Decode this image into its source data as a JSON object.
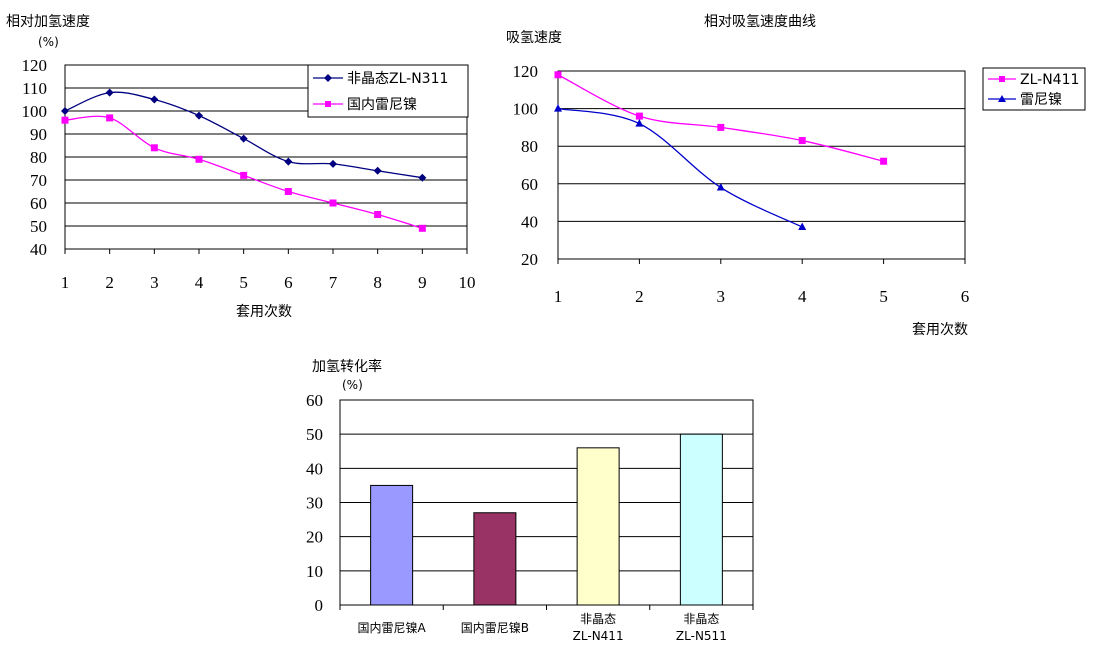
{
  "chart_data": [
    {
      "type": "line",
      "ylabel": "相对加氢速度",
      "ylabel_unit": "(%)",
      "xlabel": "套用次数",
      "x_ticks": [
        "1",
        "2",
        "3",
        "4",
        "5",
        "6",
        "7",
        "8",
        "9",
        "10"
      ],
      "y_ticks": [
        "120",
        "110",
        "100",
        "90",
        "80",
        "70",
        "60",
        "50",
        "40"
      ],
      "xlim": [
        1,
        10
      ],
      "ylim": [
        40,
        120
      ],
      "grid": true,
      "legend_position": "top-right",
      "series": [
        {
          "name": "非晶态ZL-N311",
          "color": "#000080",
          "marker": "diamond",
          "x": [
            1,
            2,
            3,
            4,
            5,
            6,
            7,
            8,
            9
          ],
          "y": [
            100,
            108,
            105,
            98,
            88,
            78,
            77,
            74,
            71
          ]
        },
        {
          "name": "国内雷尼镍",
          "color": "#FF00FF",
          "marker": "square",
          "x": [
            1,
            2,
            3,
            4,
            5,
            6,
            7,
            8,
            9
          ],
          "y": [
            96,
            97,
            84,
            79,
            72,
            65,
            60,
            55,
            49
          ]
        }
      ]
    },
    {
      "type": "line",
      "title": "相对吸氢速度曲线",
      "ylabel": "吸氢速度",
      "xlabel": "套用次数",
      "x_ticks": [
        "1",
        "2",
        "3",
        "4",
        "5",
        "6"
      ],
      "y_ticks": [
        "120",
        "100",
        "80",
        "60",
        "40",
        "20"
      ],
      "xlim": [
        1,
        6
      ],
      "ylim": [
        20,
        120
      ],
      "grid": true,
      "legend_position": "right",
      "series": [
        {
          "name": "ZL-N411",
          "color": "#FF00FF",
          "marker": "square",
          "x": [
            1,
            2,
            3,
            4,
            5
          ],
          "y": [
            118,
            96,
            90,
            83,
            72
          ]
        },
        {
          "name": "雷尼镍",
          "color": "#0000CC",
          "marker": "triangle",
          "x": [
            1,
            2,
            3,
            4
          ],
          "y": [
            100,
            92,
            58,
            37
          ]
        }
      ]
    },
    {
      "type": "bar",
      "ylabel": "加氢转化率",
      "ylabel_unit": "(%)",
      "categories": [
        {
          "line1": "国内雷尼镍A",
          "line2": ""
        },
        {
          "line1": "国内雷尼镍B",
          "line2": ""
        },
        {
          "line1": "非晶态",
          "line2": "ZL-N411"
        },
        {
          "line1": "非晶态",
          "line2": "ZL-N511"
        }
      ],
      "values": [
        35,
        27,
        46,
        50
      ],
      "colors": [
        "#9999FF",
        "#993366",
        "#FFFFCC",
        "#CCFFFF"
      ],
      "y_ticks": [
        "60",
        "50",
        "40",
        "30",
        "20",
        "10",
        "0"
      ],
      "ylim": [
        0,
        60
      ],
      "grid": true
    }
  ]
}
